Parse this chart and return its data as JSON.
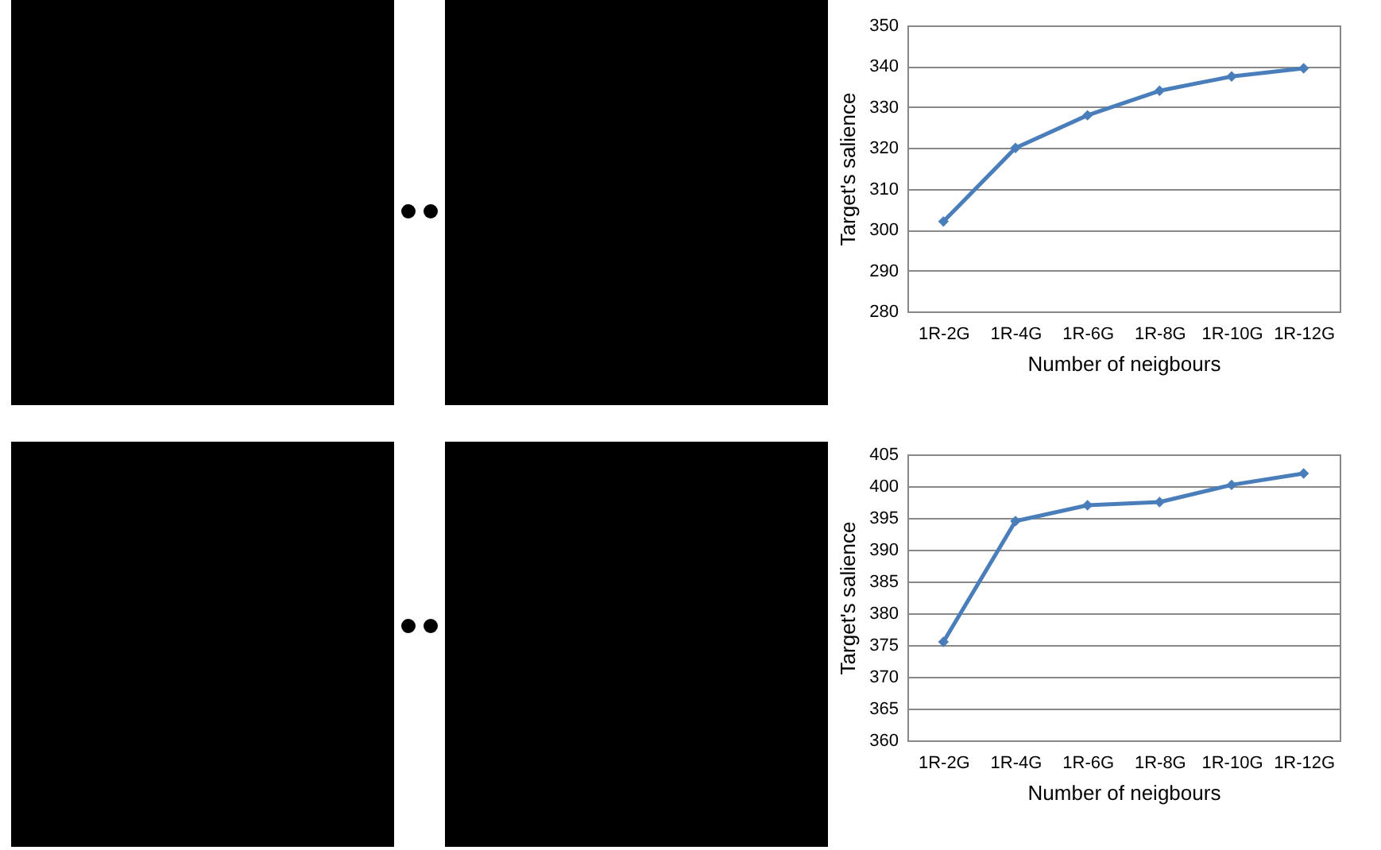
{
  "chart_data": [
    {
      "type": "line",
      "categories": [
        "1R-2G",
        "1R-4G",
        "1R-6G",
        "1R-8G",
        "1R-10G",
        "1R-12G"
      ],
      "xlabel": "Number of neigbours",
      "ylabel": "Target's salience",
      "series": [
        {
          "color": "#4a7ebb",
          "values": [
            302,
            320,
            328,
            334,
            337.5,
            339.5
          ]
        }
      ],
      "ylim": [
        280,
        350
      ],
      "yticks": [
        280,
        290,
        300,
        310,
        320,
        330,
        340,
        350
      ],
      "grid": "y",
      "marker": "diamond",
      "line_style": "solid"
    },
    {
      "type": "line",
      "categories": [
        "1R-2G",
        "1R-4G",
        "1R-6G",
        "1R-8G",
        "1R-10G",
        "1R-12G"
      ],
      "xlabel": "Number of neigbours",
      "ylabel": "Target's salience",
      "series": [
        {
          "color": "#4a7ebb",
          "values": [
            375.5,
            394.5,
            397,
            397.5,
            400.2,
            402
          ]
        }
      ],
      "ylim": [
        360,
        405
      ],
      "yticks": [
        360,
        365,
        370,
        375,
        380,
        385,
        390,
        395,
        400,
        405
      ],
      "grid": "y",
      "marker": "diamond",
      "line_style": "solid"
    }
  ]
}
